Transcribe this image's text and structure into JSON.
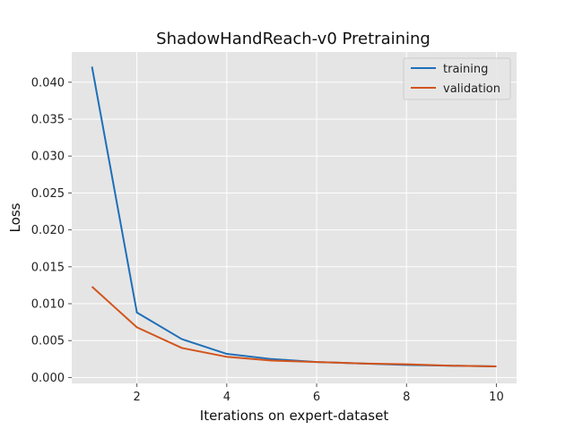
{
  "chart_data": {
    "type": "line",
    "title": "ShadowHandReach-v0 Pretraining",
    "xlabel": "Iterations on expert-dataset",
    "ylabel": "Loss",
    "x": [
      1,
      2,
      3,
      4,
      5,
      6,
      7,
      8,
      9,
      10
    ],
    "xlim": [
      0.55,
      10.45
    ],
    "ylim": [
      -0.0008,
      0.0441
    ],
    "xticks": [
      2,
      4,
      6,
      8,
      10
    ],
    "yticks": [
      0.0,
      0.005,
      0.01,
      0.015,
      0.02,
      0.025,
      0.03,
      0.035,
      0.04
    ],
    "ytick_labels": [
      "0.000",
      "0.005",
      "0.010",
      "0.015",
      "0.020",
      "0.025",
      "0.030",
      "0.035",
      "0.040"
    ],
    "grid": true,
    "legend_position": "top-right",
    "series": [
      {
        "name": "training",
        "color": "#1f6fb8",
        "values": [
          0.0421,
          0.0088,
          0.0052,
          0.0032,
          0.0025,
          0.0021,
          0.0019,
          0.0017,
          0.0016,
          0.0015
        ]
      },
      {
        "name": "validation",
        "color": "#d2541c",
        "values": [
          0.0123,
          0.0068,
          0.004,
          0.0028,
          0.0023,
          0.0021,
          0.0019,
          0.0018,
          0.0016,
          0.0015
        ]
      }
    ]
  }
}
